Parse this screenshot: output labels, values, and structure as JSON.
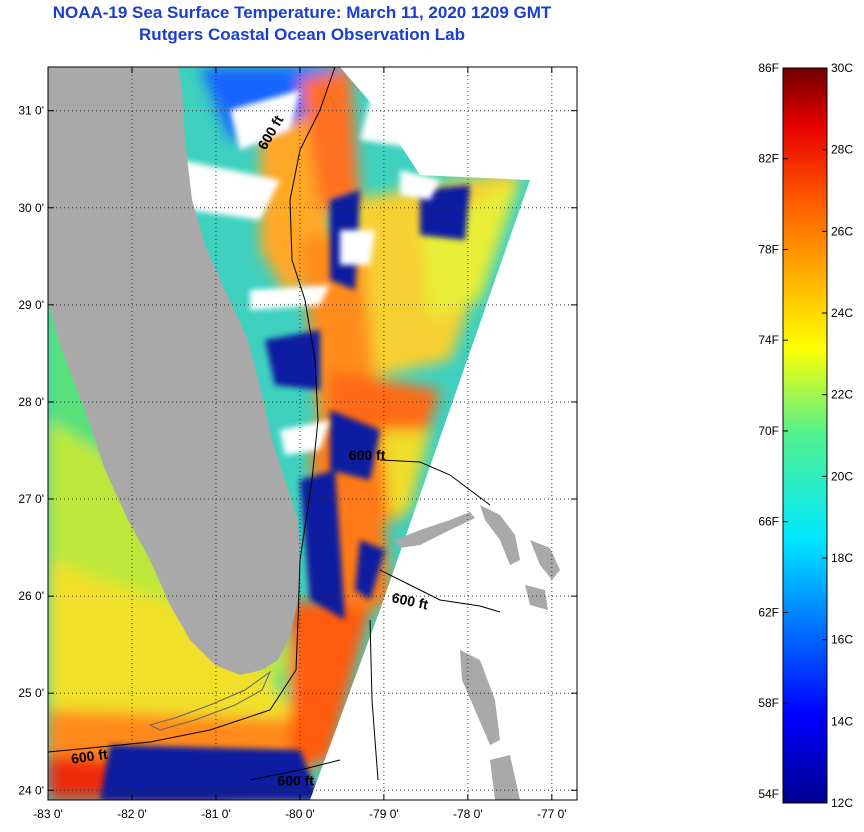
{
  "header": {
    "title": "NOAA-19 Sea Surface Temperature:  March 11, 2020 1209 GMT",
    "subtitle": "Rutgers Coastal Ocean Observation Lab"
  },
  "map": {
    "lon_range": [
      -83.0,
      -76.7
    ],
    "lat_range": [
      23.9,
      31.45
    ],
    "lon_ticks": [
      {
        "value": -83,
        "label": "-83 0'"
      },
      {
        "value": -82,
        "label": "-82 0'"
      },
      {
        "value": -81,
        "label": "-81 0'"
      },
      {
        "value": -80,
        "label": "-80 0'"
      },
      {
        "value": -79,
        "label": "-79 0'"
      },
      {
        "value": -78,
        "label": "-78 0'"
      },
      {
        "value": -77,
        "label": "-77 0'"
      }
    ],
    "lat_ticks": [
      {
        "value": 24,
        "label": "24 0'"
      },
      {
        "value": 25,
        "label": "25 0'"
      },
      {
        "value": 26,
        "label": "26 0'"
      },
      {
        "value": 27,
        "label": "27 0'"
      },
      {
        "value": 28,
        "label": "28 0'"
      },
      {
        "value": 29,
        "label": "29 0'"
      },
      {
        "value": 30,
        "label": "30 0'"
      },
      {
        "value": 31,
        "label": "31 0'"
      }
    ],
    "grid": "dotted",
    "isobath_labels": [
      {
        "text": "600 ft",
        "lon": -80.3,
        "lat": 30.75,
        "rotate": -60
      },
      {
        "text": "600 ft",
        "lon": -79.2,
        "lat": 27.4,
        "rotate": 0
      },
      {
        "text": "600 ft",
        "lon": -78.7,
        "lat": 25.9,
        "rotate": 12
      },
      {
        "text": "600 ft",
        "lon": -82.5,
        "lat": 24.3,
        "rotate": -8
      },
      {
        "text": "600 ft",
        "lon": -80.05,
        "lat": 24.05,
        "rotate": 0
      }
    ],
    "colors": {
      "land": "#a9a9a9",
      "cloud": "#ffffff",
      "frame": "#000000"
    }
  },
  "colorbar": {
    "fahrenheit_labels": [
      "86F",
      "82F",
      "78F",
      "74F",
      "70F",
      "66F",
      "62F",
      "58F",
      "54F"
    ],
    "celsius_labels": [
      "30C",
      "28C",
      "26C",
      "24C",
      "22C",
      "20C",
      "18C",
      "16C",
      "14C",
      "12C"
    ],
    "range_c": [
      12,
      30
    ],
    "colormap": "jet"
  }
}
